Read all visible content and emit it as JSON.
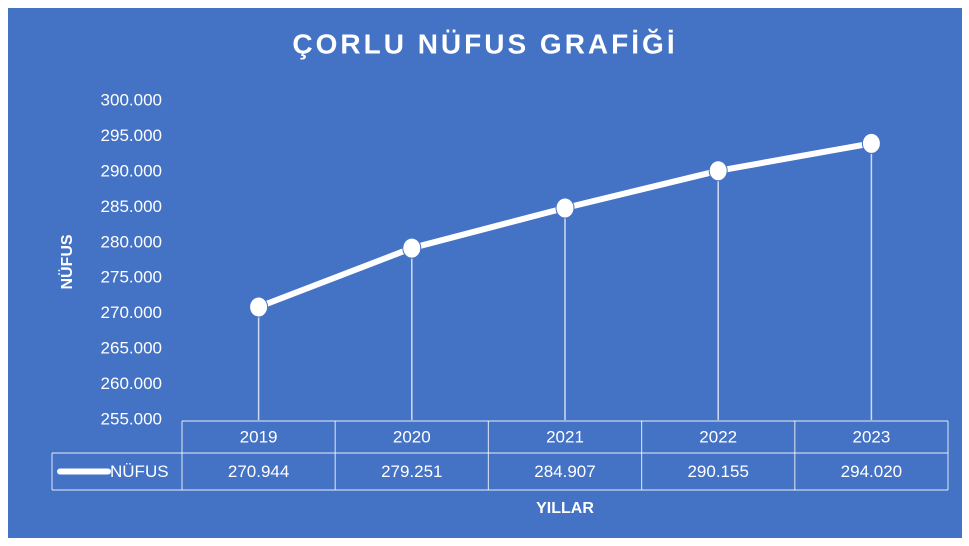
{
  "chart_data": {
    "type": "line",
    "title": "ÇORLU NÜFUS GRAFİĞİ",
    "x_label": "YILLAR",
    "y_label": "NÜFUS",
    "categories": [
      "2019",
      "2020",
      "2021",
      "2022",
      "2023"
    ],
    "series": [
      {
        "name": "NÜFUS",
        "color": "#ffffff",
        "values": [
          270944,
          279251,
          284907,
          290155,
          294020
        ],
        "value_labels": [
          "270.944",
          "279.251",
          "284.907",
          "290.155",
          "294.020"
        ]
      }
    ],
    "ylim": [
      255000,
      300000
    ],
    "yticks": [
      {
        "value": 255000,
        "label": "255.000"
      },
      {
        "value": 260000,
        "label": "260.000"
      },
      {
        "value": 265000,
        "label": "265.000"
      },
      {
        "value": 270000,
        "label": "270.000"
      },
      {
        "value": 275000,
        "label": "275.000"
      },
      {
        "value": 280000,
        "label": "280.000"
      },
      {
        "value": 285000,
        "label": "285.000"
      },
      {
        "value": 290000,
        "label": "290.000"
      },
      {
        "value": 295000,
        "label": "295.000"
      },
      {
        "value": 300000,
        "label": "300.000"
      }
    ],
    "data_table": true,
    "drop_lines": true
  }
}
